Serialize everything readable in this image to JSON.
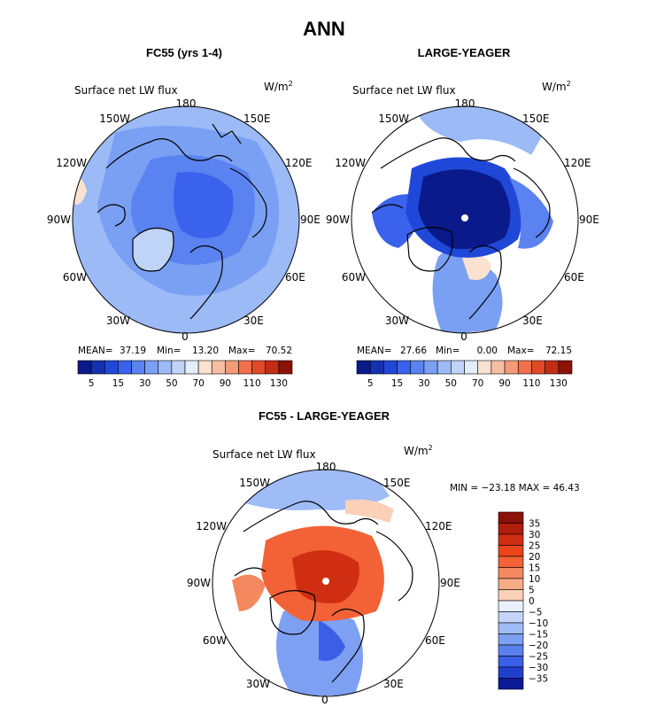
{
  "chart_data": {
    "type": "heatmap",
    "title": "ANN",
    "panels": [
      {
        "id": "p1",
        "title": "FC55 (yrs 1-4)",
        "variable": "Surface net LW flux",
        "units_base": "W/m",
        "units_exp": "2",
        "longitude_labels": [
          "180",
          "150E",
          "120E",
          "90E",
          "60E",
          "30E",
          "0",
          "30W",
          "60W",
          "90W",
          "120W",
          "150W"
        ],
        "stats": {
          "mean_label": "MEAN=",
          "mean": "37.19",
          "min_label": "Min=",
          "min": "13.20",
          "max_label": "Max=",
          "max": "70.52"
        },
        "colorbar": {
          "levels": [
            5,
            10,
            15,
            20,
            30,
            40,
            50,
            60,
            70,
            80,
            90,
            100,
            110,
            120,
            130
          ],
          "tick_labels": [
            "5",
            "15",
            "30",
            "50",
            "70",
            "90",
            "110",
            "130"
          ],
          "colors": [
            "#0a1a8a",
            "#1530b0",
            "#2048d8",
            "#3a62ec",
            "#5a82f0",
            "#7aa0f4",
            "#9cbaf6",
            "#c0d4f8",
            "#e4edfa",
            "#fbe2d0",
            "#f7c0a4",
            "#f49a78",
            "#f0704c",
            "#e04a28",
            "#c02e14",
            "#8a1206"
          ]
        }
      },
      {
        "id": "p2",
        "title": "LARGE-YEAGER",
        "variable": "Surface net LW flux",
        "units_base": "W/m",
        "units_exp": "2",
        "longitude_labels": [
          "180",
          "150E",
          "120E",
          "90E",
          "60E",
          "30E",
          "0",
          "30W",
          "60W",
          "90W",
          "120W",
          "150W"
        ],
        "stats": {
          "mean_label": "MEAN=",
          "mean": "27.66",
          "min_label": "Min=",
          "min": "0.00",
          "max_label": "Max=",
          "max": "72.15"
        },
        "colorbar": {
          "levels": [
            5,
            10,
            15,
            20,
            30,
            40,
            50,
            60,
            70,
            80,
            90,
            100,
            110,
            120,
            130
          ],
          "tick_labels": [
            "5",
            "15",
            "30",
            "50",
            "70",
            "90",
            "110",
            "130"
          ],
          "colors": [
            "#0a1a8a",
            "#1530b0",
            "#2048d8",
            "#3a62ec",
            "#5a82f0",
            "#7aa0f4",
            "#9cbaf6",
            "#c0d4f8",
            "#e4edfa",
            "#fbe2d0",
            "#f7c0a4",
            "#f49a78",
            "#f0704c",
            "#e04a28",
            "#c02e14",
            "#8a1206"
          ]
        }
      },
      {
        "id": "p3",
        "title": "FC55 - LARGE-YEAGER",
        "variable": "Surface net LW flux",
        "units_base": "W/m",
        "units_exp": "2",
        "longitude_labels": [
          "180",
          "150E",
          "120E",
          "90E",
          "60E",
          "30E",
          "0",
          "30W",
          "60W",
          "90W",
          "120W",
          "150W"
        ],
        "stats_text": "MIN = −23.18 MAX =  46.43",
        "colorbar": {
          "orientation": "vertical",
          "levels": [
            -35,
            -30,
            -25,
            -20,
            -15,
            -10,
            -5,
            0,
            5,
            10,
            15,
            20,
            25,
            30,
            35
          ],
          "tick_labels": [
            "35",
            "30",
            "25",
            "20",
            "15",
            "10",
            "5",
            "0",
            "−5",
            "−10",
            "−15",
            "−20",
            "−25",
            "−30",
            "−35"
          ],
          "colors_top_to_bottom": [
            "#8a1206",
            "#b01e0c",
            "#d02e12",
            "#ea4418",
            "#f26236",
            "#f4885e",
            "#f7ac88",
            "#fad0b8",
            "#eaf0fb",
            "#c4d6f8",
            "#a0bcf6",
            "#7ea0f2",
            "#5a80ee",
            "#3a5ee6",
            "#2040cc",
            "#0c1a96"
          ]
        }
      }
    ]
  }
}
